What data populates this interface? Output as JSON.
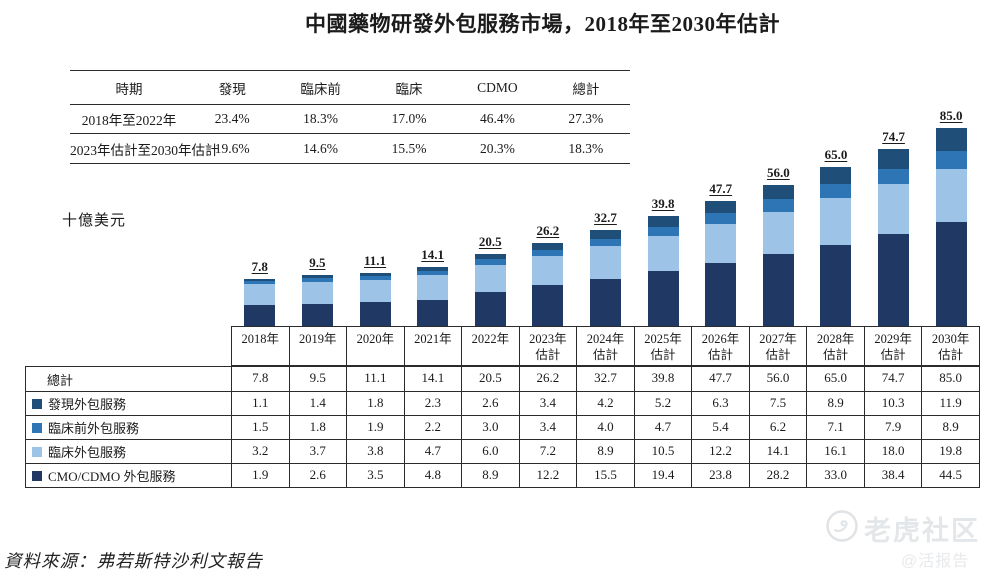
{
  "title": "中國藥物研發外包服務市場，2018年至2030年估計",
  "cagr_table": {
    "headers": [
      "時期",
      "發現",
      "臨床前",
      "臨床",
      "CDMO",
      "總計"
    ],
    "rows": [
      {
        "period": "2018年至2022年",
        "values": [
          "23.4%",
          "18.3%",
          "17.0%",
          "46.4%",
          "27.3%"
        ]
      },
      {
        "period": "2023年估計至2030年估計",
        "values": [
          "19.6%",
          "14.6%",
          "15.5%",
          "20.3%",
          "18.3%"
        ]
      }
    ]
  },
  "chart_data": {
    "type": "bar",
    "stacked": true,
    "unit_label": "十億美元",
    "categories": [
      "2018年",
      "2019年",
      "2020年",
      "2021年",
      "2022年",
      "2023年",
      "2024年",
      "2025年",
      "2026年",
      "2027年",
      "2028年",
      "2029年",
      "2030年"
    ],
    "estimate_label": "估計",
    "estimated_from_index": 5,
    "total_label": "總計",
    "totals": [
      7.8,
      9.5,
      11.1,
      14.1,
      20.5,
      26.2,
      32.7,
      39.8,
      47.7,
      56.0,
      65.0,
      74.7,
      85.0
    ],
    "series": [
      {
        "name": "發現外包服務",
        "color": "#1F4E79",
        "values": [
          1.1,
          1.4,
          1.8,
          2.3,
          2.6,
          3.4,
          4.2,
          5.2,
          6.3,
          7.5,
          8.9,
          10.3,
          11.9
        ]
      },
      {
        "name": "臨床前外包服務",
        "color": "#2E75B6",
        "values": [
          1.5,
          1.8,
          1.9,
          2.2,
          3.0,
          3.4,
          4.0,
          4.7,
          5.4,
          6.2,
          7.1,
          7.9,
          8.9
        ]
      },
      {
        "name": "臨床外包服務",
        "color": "#9DC3E6",
        "values": [
          3.2,
          3.7,
          3.8,
          4.7,
          6.0,
          7.2,
          8.9,
          10.5,
          12.2,
          14.1,
          16.1,
          18.0,
          19.8
        ]
      },
      {
        "name": "CMO/CDMO 外包服務",
        "color": "#1F3864",
        "values": [
          1.9,
          2.6,
          3.5,
          4.8,
          8.9,
          12.2,
          15.5,
          19.4,
          23.8,
          28.2,
          33.0,
          38.4,
          44.5
        ]
      }
    ],
    "stack_order_bottom_to_top": [
      "CMO/CDMO 外包服務",
      "臨床外包服務",
      "臨床前外包服務",
      "發現外包服務"
    ],
    "legend_position": "table-left",
    "grid": false
  },
  "source_note": "資料來源：弗若斯特沙利文報告",
  "watermark": {
    "brand": "老虎社区",
    "handle": "@活报告"
  }
}
